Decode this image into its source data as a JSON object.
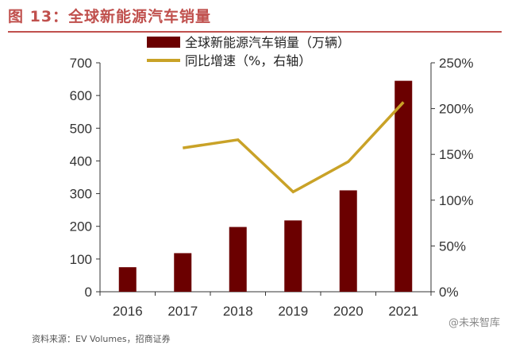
{
  "figure": {
    "title": "图 13：全球新能源汽车销量",
    "watermark": "@未来智库",
    "source_text": "资料来源：EV Volumes，招商证券"
  },
  "colors": {
    "bar": "#6b0000",
    "line": "#c9a227",
    "title": "#c0504d",
    "axis": "#333333"
  },
  "chart_data": {
    "type": "bar",
    "categories": [
      "2016",
      "2017",
      "2018",
      "2019",
      "2020",
      "2021"
    ],
    "series": [
      {
        "name": "全球新能源汽车销量（万辆）",
        "type": "bar",
        "axis": "left",
        "values": [
          75,
          118,
          198,
          218,
          310,
          645
        ]
      },
      {
        "name": "同比增速（%，右轴）",
        "type": "line",
        "axis": "right",
        "values": [
          null,
          157,
          166,
          109,
          142,
          207
        ]
      }
    ],
    "left_axis": {
      "ylim": [
        0,
        700
      ],
      "ticks": [
        "0",
        "100",
        "200",
        "300",
        "400",
        "500",
        "600",
        "700"
      ]
    },
    "right_axis": {
      "ylim": [
        0,
        250
      ],
      "ticks": [
        "0%",
        "50%",
        "100%",
        "150%",
        "200%",
        "250%"
      ]
    },
    "grid": false,
    "legend_position": "top-center"
  }
}
